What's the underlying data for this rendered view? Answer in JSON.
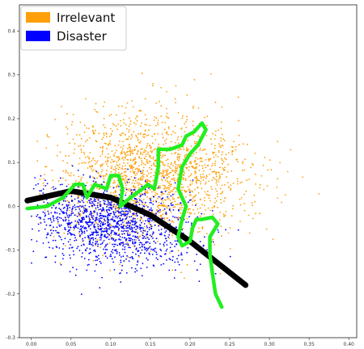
{
  "chart_data": {
    "type": "scatter",
    "title": "",
    "xlabel": "",
    "ylabel": "",
    "xlim": [
      -0.015,
      0.41
    ],
    "ylim": [
      -0.3,
      0.46
    ],
    "xticks": [
      "0.00",
      "0.05",
      "0.10",
      "0.15",
      "0.20",
      "0.25",
      "0.30",
      "0.35",
      "0.40"
    ],
    "yticks": [
      "0.4",
      "0.3",
      "0.2",
      "0.1",
      "0.0",
      "-0.1",
      "-0.2",
      "-0.3"
    ],
    "grid": false,
    "legend_position": "top-left",
    "series": [
      {
        "name": "Irrelevant",
        "color": "#ff9f0a",
        "count": 1800,
        "cluster_center": [
          0.15,
          0.07
        ],
        "spread": [
          0.06,
          0.07
        ]
      },
      {
        "name": "Disaster",
        "color": "#0000ff",
        "count": 1400,
        "cluster_center": [
          0.1,
          -0.04
        ],
        "spread": [
          0.05,
          0.045
        ]
      }
    ],
    "annotations": [
      {
        "type": "curve",
        "color": "#000000",
        "description": "black decision-boundary curve",
        "points": [
          [
            -0.005,
            0.013
          ],
          [
            0.05,
            0.035
          ],
          [
            0.1,
            0.02
          ],
          [
            0.15,
            -0.02
          ],
          [
            0.2,
            -0.08
          ],
          [
            0.27,
            -0.18
          ]
        ]
      },
      {
        "type": "freehand",
        "color": "#22ee22",
        "description": "green hand-drawn boundary",
        "points": [
          [
            -0.005,
            -0.005
          ],
          [
            0.02,
            0.0
          ],
          [
            0.04,
            0.02
          ],
          [
            0.055,
            0.05
          ],
          [
            0.065,
            0.05
          ],
          [
            0.07,
            0.02
          ],
          [
            0.08,
            0.05
          ],
          [
            0.095,
            0.04
          ],
          [
            0.1,
            0.07
          ],
          [
            0.11,
            0.07
          ],
          [
            0.115,
            0.04
          ],
          [
            0.112,
            0.0
          ],
          [
            0.125,
            0.02
          ],
          [
            0.14,
            0.04
          ],
          [
            0.147,
            0.05
          ],
          [
            0.155,
            0.04
          ],
          [
            0.16,
            0.09
          ],
          [
            0.16,
            0.13
          ],
          [
            0.175,
            0.13
          ],
          [
            0.19,
            0.14
          ],
          [
            0.195,
            0.16
          ],
          [
            0.205,
            0.17
          ],
          [
            0.215,
            0.19
          ],
          [
            0.22,
            0.175
          ],
          [
            0.21,
            0.14
          ],
          [
            0.2,
            0.12
          ],
          [
            0.19,
            0.09
          ],
          [
            0.185,
            0.04
          ],
          [
            0.19,
            0.02
          ],
          [
            0.195,
            0.0
          ],
          [
            0.19,
            -0.03
          ],
          [
            0.185,
            -0.07
          ],
          [
            0.19,
            -0.09
          ],
          [
            0.2,
            -0.08
          ],
          [
            0.203,
            -0.05
          ],
          [
            0.208,
            -0.03
          ],
          [
            0.215,
            -0.03
          ],
          [
            0.228,
            -0.025
          ],
          [
            0.235,
            -0.04
          ],
          [
            0.225,
            -0.07
          ],
          [
            0.225,
            -0.11
          ],
          [
            0.228,
            -0.15
          ],
          [
            0.232,
            -0.2
          ],
          [
            0.24,
            -0.23
          ]
        ]
      }
    ]
  }
}
